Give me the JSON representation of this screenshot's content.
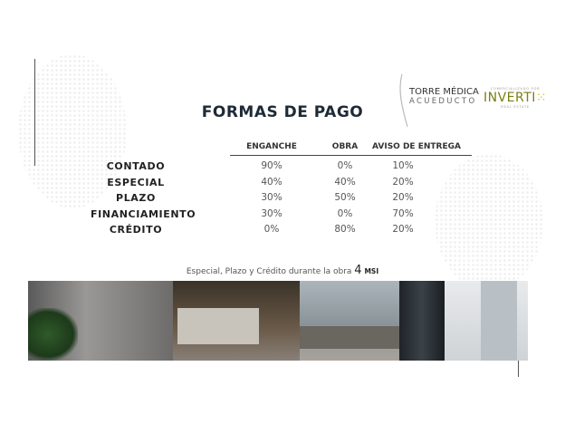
{
  "title": "FORMAS DE PAGO",
  "logos": {
    "torre_line1": "TORRE MÉDICA",
    "torre_line2": "ACUEDUCTO",
    "inverti_top": "COMERCIALIZADO POR",
    "inverti_name": "INVERTI",
    "inverti_bottom": "REAL ESTATE"
  },
  "table": {
    "headers": [
      "ENGANCHE",
      "OBRA",
      "AVISO DE ENTREGA"
    ],
    "rows": [
      {
        "label": "CONTADO",
        "values": [
          "90%",
          "0%",
          "10%"
        ]
      },
      {
        "label": "ESPECIAL",
        "values": [
          "40%",
          "40%",
          "20%"
        ]
      },
      {
        "label": "PLAZO",
        "values": [
          "30%",
          "50%",
          "20%"
        ]
      },
      {
        "label": "FINANCIAMIENTO",
        "values": [
          "30%",
          "0%",
          "70%"
        ]
      },
      {
        "label": "CRÉDITO",
        "values": [
          "0%",
          "80%",
          "20%"
        ]
      }
    ]
  },
  "note": {
    "text": "Especial, Plazo y Crédito durante la obra",
    "number": "4",
    "unit": "MSI"
  },
  "colors": {
    "text": "#1f2a36",
    "accent_olive": "#7a7f12",
    "accent_yellow": "#d4c21a"
  }
}
